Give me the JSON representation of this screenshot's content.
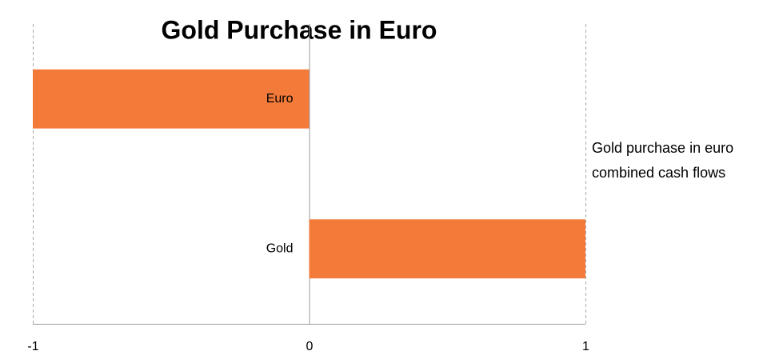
{
  "chart_data": {
    "type": "bar",
    "orientation": "horizontal",
    "title": "Gold Purchase in Euro",
    "categories": [
      "Euro",
      "Gold"
    ],
    "series": [
      {
        "name": "Gold purchase in euro combined cash flows",
        "color": "#f47a3a",
        "values": [
          -1,
          1
        ]
      }
    ],
    "xlim": [
      -1,
      1
    ],
    "xticks": [
      -1,
      0,
      1
    ],
    "grid": true,
    "legend": "right"
  }
}
